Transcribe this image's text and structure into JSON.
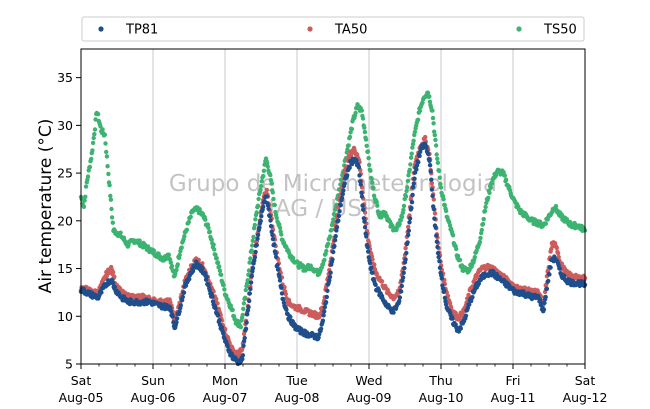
{
  "chart_data": {
    "type": "scatter",
    "ylabel": "Air temperature (°C)",
    "xlabel": "",
    "ylim": [
      5,
      38
    ],
    "yticks": [
      5,
      10,
      15,
      20,
      25,
      30,
      35
    ],
    "xlim": [
      0,
      7
    ],
    "grid": "vertical",
    "legend_position": "top",
    "watermark_lines": [
      "Grupo de Micrometeorologia",
      "IAG / USP"
    ],
    "x_ticks": [
      {
        "pos": 0,
        "day": "Sat",
        "date": "Aug-05"
      },
      {
        "pos": 1,
        "day": "Sun",
        "date": "Aug-06"
      },
      {
        "pos": 2,
        "day": "Mon",
        "date": "Aug-07"
      },
      {
        "pos": 3,
        "day": "Tue",
        "date": "Aug-08"
      },
      {
        "pos": 4,
        "day": "Wed",
        "date": "Aug-09"
      },
      {
        "pos": 5,
        "day": "Thu",
        "date": "Aug-10"
      },
      {
        "pos": 6,
        "day": "Fri",
        "date": "Aug-11"
      },
      {
        "pos": 7,
        "day": "Sat",
        "date": "Aug-12"
      }
    ],
    "series": [
      {
        "name": "TS50",
        "color": "#3cb371",
        "points": [
          [
            0.0,
            22.5
          ],
          [
            0.04,
            21.5
          ],
          [
            0.08,
            24.0
          ],
          [
            0.15,
            27.0
          ],
          [
            0.22,
            31.5
          ],
          [
            0.28,
            29.5
          ],
          [
            0.33,
            29.0
          ],
          [
            0.38,
            25.0
          ],
          [
            0.45,
            19.0
          ],
          [
            0.55,
            18.5
          ],
          [
            0.65,
            17.5
          ],
          [
            0.75,
            18.0
          ],
          [
            0.85,
            17.5
          ],
          [
            0.95,
            17.0
          ],
          [
            1.05,
            16.5
          ],
          [
            1.15,
            16.0
          ],
          [
            1.22,
            16.5
          ],
          [
            1.3,
            14.0
          ],
          [
            1.38,
            17.0
          ],
          [
            1.48,
            19.5
          ],
          [
            1.55,
            21.0
          ],
          [
            1.62,
            21.2
          ],
          [
            1.7,
            20.5
          ],
          [
            1.78,
            19.0
          ],
          [
            1.85,
            17.0
          ],
          [
            1.92,
            15.0
          ],
          [
            2.0,
            12.5
          ],
          [
            2.08,
            11.0
          ],
          [
            2.15,
            9.5
          ],
          [
            2.22,
            9.0
          ],
          [
            2.28,
            12.0
          ],
          [
            2.36,
            16.5
          ],
          [
            2.44,
            21.0
          ],
          [
            2.52,
            24.5
          ],
          [
            2.57,
            26.5
          ],
          [
            2.62,
            25.0
          ],
          [
            2.7,
            21.0
          ],
          [
            2.8,
            18.0
          ],
          [
            2.9,
            16.5
          ],
          [
            3.0,
            15.5
          ],
          [
            3.1,
            15.0
          ],
          [
            3.2,
            15.2
          ],
          [
            3.3,
            14.5
          ],
          [
            3.38,
            16.0
          ],
          [
            3.46,
            18.5
          ],
          [
            3.54,
            21.5
          ],
          [
            3.62,
            24.5
          ],
          [
            3.7,
            27.5
          ],
          [
            3.78,
            30.5
          ],
          [
            3.84,
            32.0
          ],
          [
            3.9,
            31.5
          ],
          [
            3.96,
            28.5
          ],
          [
            4.02,
            25.0
          ],
          [
            4.08,
            22.5
          ],
          [
            4.15,
            20.5
          ],
          [
            4.22,
            21.0
          ],
          [
            4.3,
            19.5
          ],
          [
            4.38,
            19.0
          ],
          [
            4.46,
            20.5
          ],
          [
            4.54,
            24.0
          ],
          [
            4.62,
            28.5
          ],
          [
            4.7,
            31.5
          ],
          [
            4.76,
            33.0
          ],
          [
            4.82,
            33.5
          ],
          [
            4.88,
            31.5
          ],
          [
            4.94,
            27.0
          ],
          [
            5.0,
            23.5
          ],
          [
            5.08,
            20.5
          ],
          [
            5.16,
            18.5
          ],
          [
            5.22,
            16.5
          ],
          [
            5.3,
            15.0
          ],
          [
            5.38,
            14.8
          ],
          [
            5.46,
            16.0
          ],
          [
            5.54,
            18.0
          ],
          [
            5.62,
            21.5
          ],
          [
            5.7,
            24.0
          ],
          [
            5.78,
            25.2
          ],
          [
            5.86,
            25.0
          ],
          [
            5.94,
            23.5
          ],
          [
            6.02,
            22.0
          ],
          [
            6.1,
            21.0
          ],
          [
            6.18,
            20.5
          ],
          [
            6.26,
            20.0
          ],
          [
            6.34,
            19.8
          ],
          [
            6.42,
            19.5
          ],
          [
            6.5,
            20.5
          ],
          [
            6.58,
            21.5
          ],
          [
            6.66,
            20.5
          ],
          [
            6.74,
            20.0
          ],
          [
            6.82,
            19.5
          ],
          [
            6.9,
            19.5
          ],
          [
            7.0,
            19.0
          ]
        ]
      },
      {
        "name": "TA50",
        "color": "#cd5c5c",
        "points": [
          [
            0.0,
            13.0
          ],
          [
            0.08,
            12.8
          ],
          [
            0.16,
            12.5
          ],
          [
            0.24,
            12.5
          ],
          [
            0.3,
            13.5
          ],
          [
            0.36,
            14.5
          ],
          [
            0.42,
            15.0
          ],
          [
            0.48,
            13.5
          ],
          [
            0.56,
            12.5
          ],
          [
            0.66,
            12.0
          ],
          [
            0.76,
            12.0
          ],
          [
            0.86,
            12.0
          ],
          [
            0.96,
            11.8
          ],
          [
            1.06,
            11.5
          ],
          [
            1.16,
            11.5
          ],
          [
            1.24,
            11.5
          ],
          [
            1.3,
            9.5
          ],
          [
            1.36,
            11.0
          ],
          [
            1.44,
            13.5
          ],
          [
            1.52,
            15.0
          ],
          [
            1.6,
            16.0
          ],
          [
            1.66,
            15.5
          ],
          [
            1.72,
            15.0
          ],
          [
            1.78,
            13.5
          ],
          [
            1.86,
            12.0
          ],
          [
            1.94,
            10.0
          ],
          [
            2.02,
            8.0
          ],
          [
            2.1,
            6.5
          ],
          [
            2.18,
            6.0
          ],
          [
            2.24,
            6.5
          ],
          [
            2.3,
            10.0
          ],
          [
            2.38,
            15.0
          ],
          [
            2.46,
            19.0
          ],
          [
            2.54,
            22.5
          ],
          [
            2.58,
            23.0
          ],
          [
            2.64,
            20.5
          ],
          [
            2.72,
            16.5
          ],
          [
            2.8,
            13.5
          ],
          [
            2.88,
            11.5
          ],
          [
            2.96,
            11.0
          ],
          [
            3.04,
            10.8
          ],
          [
            3.12,
            10.5
          ],
          [
            3.2,
            10.3
          ],
          [
            3.3,
            10.0
          ],
          [
            3.36,
            11.0
          ],
          [
            3.44,
            14.5
          ],
          [
            3.52,
            18.5
          ],
          [
            3.6,
            22.5
          ],
          [
            3.68,
            25.5
          ],
          [
            3.74,
            27.0
          ],
          [
            3.8,
            27.5
          ],
          [
            3.86,
            26.5
          ],
          [
            3.92,
            22.5
          ],
          [
            3.98,
            18.5
          ],
          [
            4.04,
            16.0
          ],
          [
            4.1,
            14.5
          ],
          [
            4.18,
            13.5
          ],
          [
            4.26,
            12.5
          ],
          [
            4.34,
            12.0
          ],
          [
            4.42,
            12.5
          ],
          [
            4.5,
            16.5
          ],
          [
            4.58,
            22.0
          ],
          [
            4.64,
            26.0
          ],
          [
            4.72,
            28.0
          ],
          [
            4.78,
            28.5
          ],
          [
            4.84,
            27.0
          ],
          [
            4.9,
            22.0
          ],
          [
            4.96,
            17.5
          ],
          [
            5.02,
            14.5
          ],
          [
            5.08,
            12.5
          ],
          [
            5.16,
            10.5
          ],
          [
            5.24,
            9.8
          ],
          [
            5.32,
            10.5
          ],
          [
            5.4,
            12.5
          ],
          [
            5.48,
            14.0
          ],
          [
            5.56,
            15.0
          ],
          [
            5.64,
            15.2
          ],
          [
            5.72,
            15.0
          ],
          [
            5.8,
            14.5
          ],
          [
            5.88,
            14.0
          ],
          [
            5.96,
            13.5
          ],
          [
            6.04,
            13.0
          ],
          [
            6.12,
            12.8
          ],
          [
            6.2,
            12.8
          ],
          [
            6.28,
            12.5
          ],
          [
            6.36,
            12.5
          ],
          [
            6.42,
            11.0
          ],
          [
            6.48,
            14.5
          ],
          [
            6.54,
            17.5
          ],
          [
            6.6,
            17.5
          ],
          [
            6.66,
            15.5
          ],
          [
            6.74,
            14.5
          ],
          [
            6.82,
            14.2
          ],
          [
            6.9,
            14.0
          ],
          [
            7.0,
            14.0
          ]
        ]
      },
      {
        "name": "TP81",
        "color": "#1f4e8c",
        "points": [
          [
            0.0,
            12.8
          ],
          [
            0.08,
            12.5
          ],
          [
            0.16,
            12.2
          ],
          [
            0.24,
            12.0
          ],
          [
            0.3,
            12.8
          ],
          [
            0.36,
            13.5
          ],
          [
            0.42,
            13.8
          ],
          [
            0.48,
            12.8
          ],
          [
            0.56,
            12.0
          ],
          [
            0.66,
            11.5
          ],
          [
            0.76,
            11.5
          ],
          [
            0.86,
            11.5
          ],
          [
            0.96,
            11.5
          ],
          [
            1.06,
            11.2
          ],
          [
            1.16,
            11.0
          ],
          [
            1.24,
            11.0
          ],
          [
            1.3,
            8.8
          ],
          [
            1.36,
            10.5
          ],
          [
            1.44,
            13.0
          ],
          [
            1.52,
            14.5
          ],
          [
            1.6,
            15.5
          ],
          [
            1.66,
            15.0
          ],
          [
            1.72,
            14.5
          ],
          [
            1.78,
            13.0
          ],
          [
            1.86,
            11.0
          ],
          [
            1.94,
            9.0
          ],
          [
            2.02,
            7.0
          ],
          [
            2.1,
            5.8
          ],
          [
            2.18,
            5.2
          ],
          [
            2.24,
            5.5
          ],
          [
            2.3,
            9.5
          ],
          [
            2.38,
            14.5
          ],
          [
            2.46,
            18.5
          ],
          [
            2.54,
            22.0
          ],
          [
            2.58,
            22.5
          ],
          [
            2.64,
            19.5
          ],
          [
            2.72,
            15.5
          ],
          [
            2.8,
            12.0
          ],
          [
            2.88,
            10.0
          ],
          [
            2.96,
            9.0
          ],
          [
            3.04,
            8.5
          ],
          [
            3.12,
            8.2
          ],
          [
            3.2,
            8.0
          ],
          [
            3.3,
            7.8
          ],
          [
            3.36,
            9.5
          ],
          [
            3.44,
            13.5
          ],
          [
            3.52,
            17.5
          ],
          [
            3.6,
            21.5
          ],
          [
            3.68,
            24.5
          ],
          [
            3.74,
            26.0
          ],
          [
            3.8,
            26.5
          ],
          [
            3.86,
            25.5
          ],
          [
            3.92,
            21.0
          ],
          [
            3.98,
            17.0
          ],
          [
            4.04,
            14.5
          ],
          [
            4.1,
            13.0
          ],
          [
            4.18,
            12.0
          ],
          [
            4.26,
            11.0
          ],
          [
            4.34,
            10.5
          ],
          [
            4.42,
            11.5
          ],
          [
            4.5,
            15.5
          ],
          [
            4.58,
            21.0
          ],
          [
            4.64,
            25.0
          ],
          [
            4.72,
            27.5
          ],
          [
            4.78,
            28.0
          ],
          [
            4.84,
            26.5
          ],
          [
            4.9,
            21.0
          ],
          [
            4.96,
            16.5
          ],
          [
            5.02,
            13.5
          ],
          [
            5.08,
            11.0
          ],
          [
            5.16,
            9.5
          ],
          [
            5.24,
            8.5
          ],
          [
            5.32,
            9.5
          ],
          [
            5.4,
            11.5
          ],
          [
            5.48,
            13.0
          ],
          [
            5.56,
            14.0
          ],
          [
            5.64,
            14.5
          ],
          [
            5.72,
            14.5
          ],
          [
            5.8,
            14.0
          ],
          [
            5.88,
            13.5
          ],
          [
            5.96,
            13.0
          ],
          [
            6.04,
            12.5
          ],
          [
            6.12,
            12.5
          ],
          [
            6.2,
            12.2
          ],
          [
            6.28,
            12.0
          ],
          [
            6.36,
            12.0
          ],
          [
            6.42,
            10.5
          ],
          [
            6.48,
            13.5
          ],
          [
            6.54,
            16.0
          ],
          [
            6.6,
            16.0
          ],
          [
            6.66,
            14.5
          ],
          [
            6.74,
            13.8
          ],
          [
            6.82,
            13.5
          ],
          [
            6.9,
            13.5
          ],
          [
            7.0,
            13.3
          ]
        ]
      }
    ],
    "legend": [
      {
        "name": "TP81",
        "color": "#1f4e8c"
      },
      {
        "name": "TA50",
        "color": "#cd5c5c"
      },
      {
        "name": "TS50",
        "color": "#3cb371"
      }
    ]
  }
}
